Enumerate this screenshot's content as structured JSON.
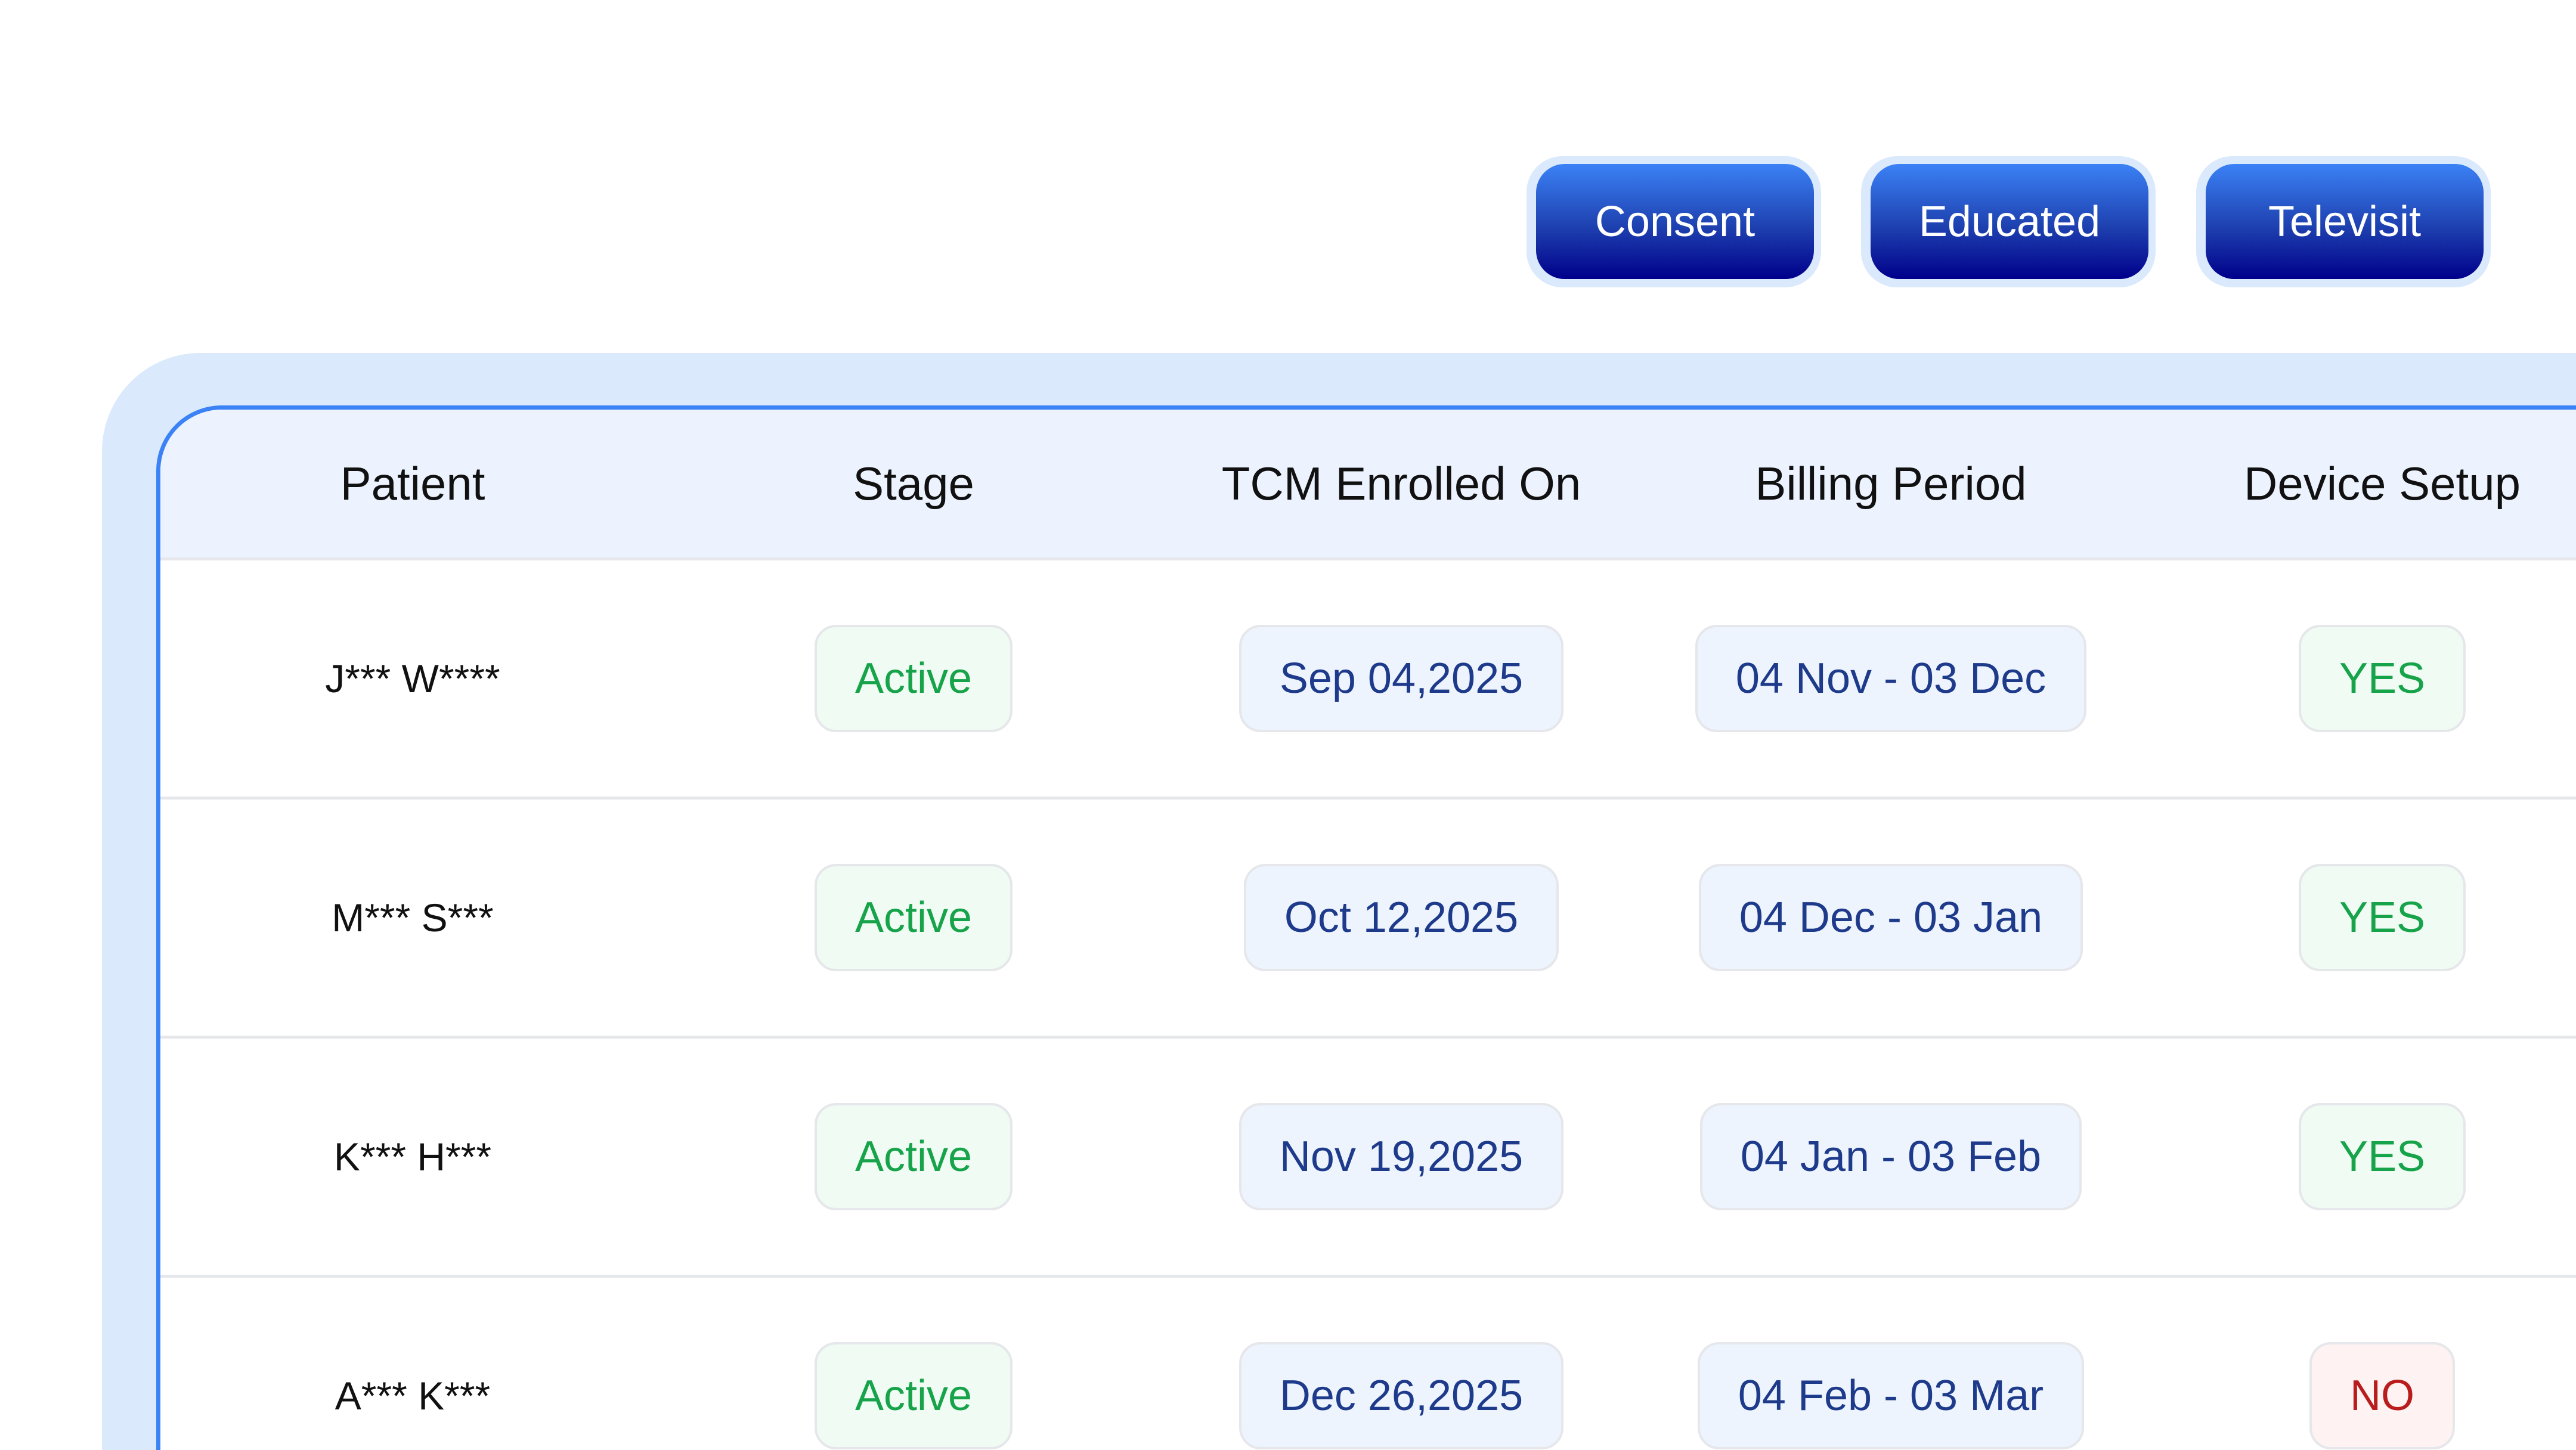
{
  "toolbar": {
    "buttons": [
      {
        "label": "Consent"
      },
      {
        "label": "Educated"
      },
      {
        "label": "Televisit"
      }
    ]
  },
  "table": {
    "headers": [
      "Patient",
      "Stage",
      "TCM Enrolled On",
      "Billing Period",
      "Device Setup"
    ],
    "rows": [
      {
        "patient": "J*** W****",
        "stage": "Active",
        "enrolled": "Sep 04,2025",
        "billing": "04 Nov - 03 Dec",
        "device": "YES"
      },
      {
        "patient": "M*** S***",
        "stage": "Active",
        "enrolled": "Oct 12,2025",
        "billing": "04 Dec - 03 Jan",
        "device": "YES"
      },
      {
        "patient": "K*** H***",
        "stage": "Active",
        "enrolled": "Nov 19,2025",
        "billing": "04 Jan - 03 Feb",
        "device": "YES"
      },
      {
        "patient": "A*** K***",
        "stage": "Active",
        "enrolled": "Dec 26,2025",
        "billing": "04 Feb - 03 Mar",
        "device": "NO"
      }
    ]
  },
  "colors": {
    "accent": "#3b82f6",
    "button_dark": "#00008b",
    "active_green": "#16a34a",
    "date_blue": "#1e3a8a",
    "no_red": "#b91c1c"
  }
}
